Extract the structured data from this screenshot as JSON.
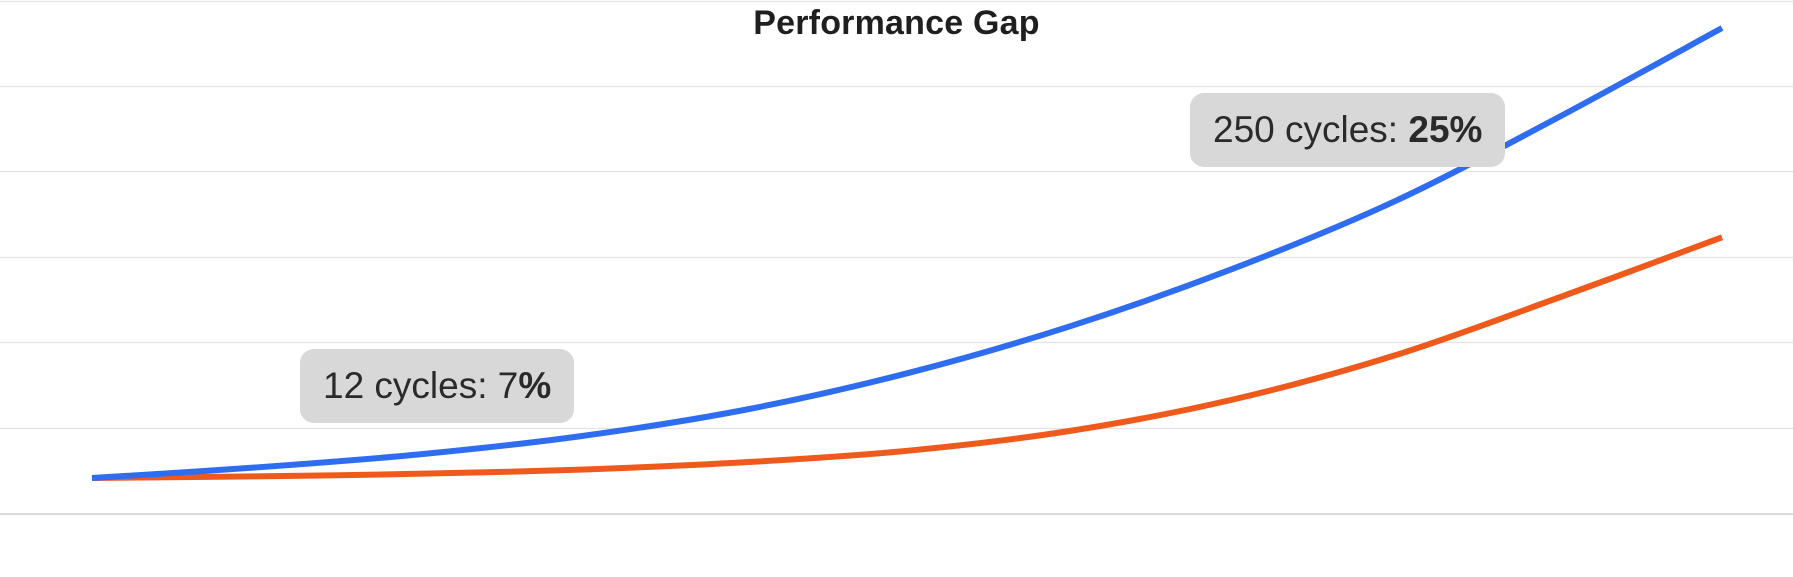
{
  "chart_data": {
    "type": "line",
    "title": "Performance Gap",
    "xlabel": "",
    "ylabel": "",
    "grid": true,
    "legend": "none",
    "series": [
      {
        "color": "#2f6df0",
        "points": [
          [
            0,
            0.0
          ],
          [
            0.1,
            0.2
          ],
          [
            0.2,
            0.45
          ],
          [
            0.3,
            0.8
          ],
          [
            0.4,
            1.3
          ],
          [
            0.5,
            2.0
          ],
          [
            0.6,
            2.9
          ],
          [
            0.7,
            4.0
          ],
          [
            0.8,
            5.3
          ],
          [
            0.9,
            6.9
          ],
          [
            1.0,
            8.6
          ]
        ]
      },
      {
        "color": "#ef5a1c",
        "points": [
          [
            0,
            0.0
          ],
          [
            0.1,
            0.03
          ],
          [
            0.2,
            0.08
          ],
          [
            0.3,
            0.16
          ],
          [
            0.4,
            0.3
          ],
          [
            0.5,
            0.52
          ],
          [
            0.6,
            0.9
          ],
          [
            0.7,
            1.5
          ],
          [
            0.8,
            2.35
          ],
          [
            0.9,
            3.45
          ],
          [
            1.0,
            4.6
          ]
        ]
      }
    ],
    "annotations": [
      {
        "text_before": "12 cycles: 7",
        "text_bold": "%"
      },
      {
        "text_before": "250 cycles: ",
        "text_bold": "25%"
      }
    ]
  }
}
